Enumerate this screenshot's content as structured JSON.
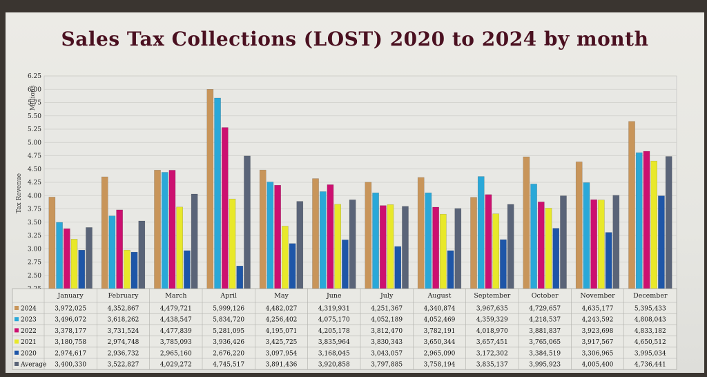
{
  "chart_data": {
    "type": "bar",
    "title": "Sales Tax Collections (LOST)  2020 to 2024 by month",
    "ylabel": "Tax Revenue",
    "yunit": "Millions",
    "ylim": [
      2.25,
      6.25
    ],
    "yticks": [
      "2.25",
      "2.50",
      "2.75",
      "3.00",
      "3.25",
      "3.50",
      "3.75",
      "4.00",
      "4.25",
      "4.50",
      "4.75",
      "5.00",
      "5.25",
      "5.50",
      "5.75",
      "6.00",
      "6.25"
    ],
    "categories": [
      "January",
      "February",
      "March",
      "April",
      "May",
      "June",
      "July",
      "August",
      "September",
      "October",
      "November",
      "December"
    ],
    "series": [
      {
        "name": "2024",
        "color": "#c8955a",
        "values": [
          3972025,
          4352867,
          4479721,
          5999126,
          4482027,
          4319931,
          4251367,
          4340874,
          3967635,
          4729657,
          4635177,
          5395433
        ],
        "labels": [
          "3,972,025",
          "4,352,867",
          "4,479,721",
          "5,999,126",
          "4,482,027",
          "4,319,931",
          "4,251,367",
          "4,340,874",
          "3,967,635",
          "4,729,657",
          "4,635,177",
          "5,395,433"
        ]
      },
      {
        "name": "2023",
        "color": "#2aa8d8",
        "values": [
          3496072,
          3618262,
          4438547,
          5834720,
          4256402,
          4075170,
          4052189,
          4052469,
          4359329,
          4218537,
          4243592,
          4808043
        ],
        "labels": [
          "3,496,072",
          "3,618,262",
          "4,438,547",
          "5,834,720",
          "4,256,402",
          "4,075,170",
          "4,052,189",
          "4,052,469",
          "4,359,329",
          "4,218,537",
          "4,243,592",
          "4,808,043"
        ]
      },
      {
        "name": "2022",
        "color": "#cc1070",
        "values": [
          3378177,
          3731524,
          4477839,
          5281095,
          4195071,
          4205178,
          3812470,
          3782191,
          4018970,
          3881837,
          3923698,
          4833182
        ],
        "labels": [
          "3,378,177",
          "3,731,524",
          "4,477,839",
          "5,281,095",
          "4,195,071",
          "4,205,178",
          "3,812,470",
          "3,782,191",
          "4,018,970",
          "3,881,837",
          "3,923,698",
          "4,833,182"
        ]
      },
      {
        "name": "2021",
        "color": "#e8e82a",
        "values": [
          3180758,
          2974748,
          3785093,
          3936426,
          3425725,
          3835964,
          3830343,
          3650344,
          3657451,
          3765065,
          3917567,
          4650512
        ],
        "labels": [
          "3,180,758",
          "2,974,748",
          "3,785,093",
          "3,936,426",
          "3,425,725",
          "3,835,964",
          "3,830,343",
          "3,650,344",
          "3,657,451",
          "3,765,065",
          "3,917,567",
          "4,650,512"
        ]
      },
      {
        "name": "2020",
        "color": "#1e56a8",
        "values": [
          2974617,
          2936732,
          2965160,
          2676220,
          3097954,
          3168045,
          3043057,
          2965090,
          3172302,
          3384519,
          3306965,
          3995034
        ],
        "labels": [
          "2,974,617",
          "2,936,732",
          "2,965,160",
          "2,676,220",
          "3,097,954",
          "3,168,045",
          "3,043,057",
          "2,965,090",
          "3,172,302",
          "3,384,519",
          "3,306,965",
          "3,995,034"
        ]
      },
      {
        "name": "Average",
        "color": "#5a6478",
        "values": [
          3400330,
          3522827,
          4029272,
          4745517,
          3891436,
          3920858,
          3797885,
          3758194,
          3835137,
          3995923,
          4005400,
          4736441
        ],
        "labels": [
          "3,400,330",
          "3,522,827",
          "4,029,272",
          "4,745,517",
          "3,891,436",
          "3,920,858",
          "3,797,885",
          "3,758,194",
          "3,835,137",
          "3,995,923",
          "4,005,400",
          "4,736,441"
        ]
      }
    ],
    "grid": true,
    "legend": "data-table"
  }
}
